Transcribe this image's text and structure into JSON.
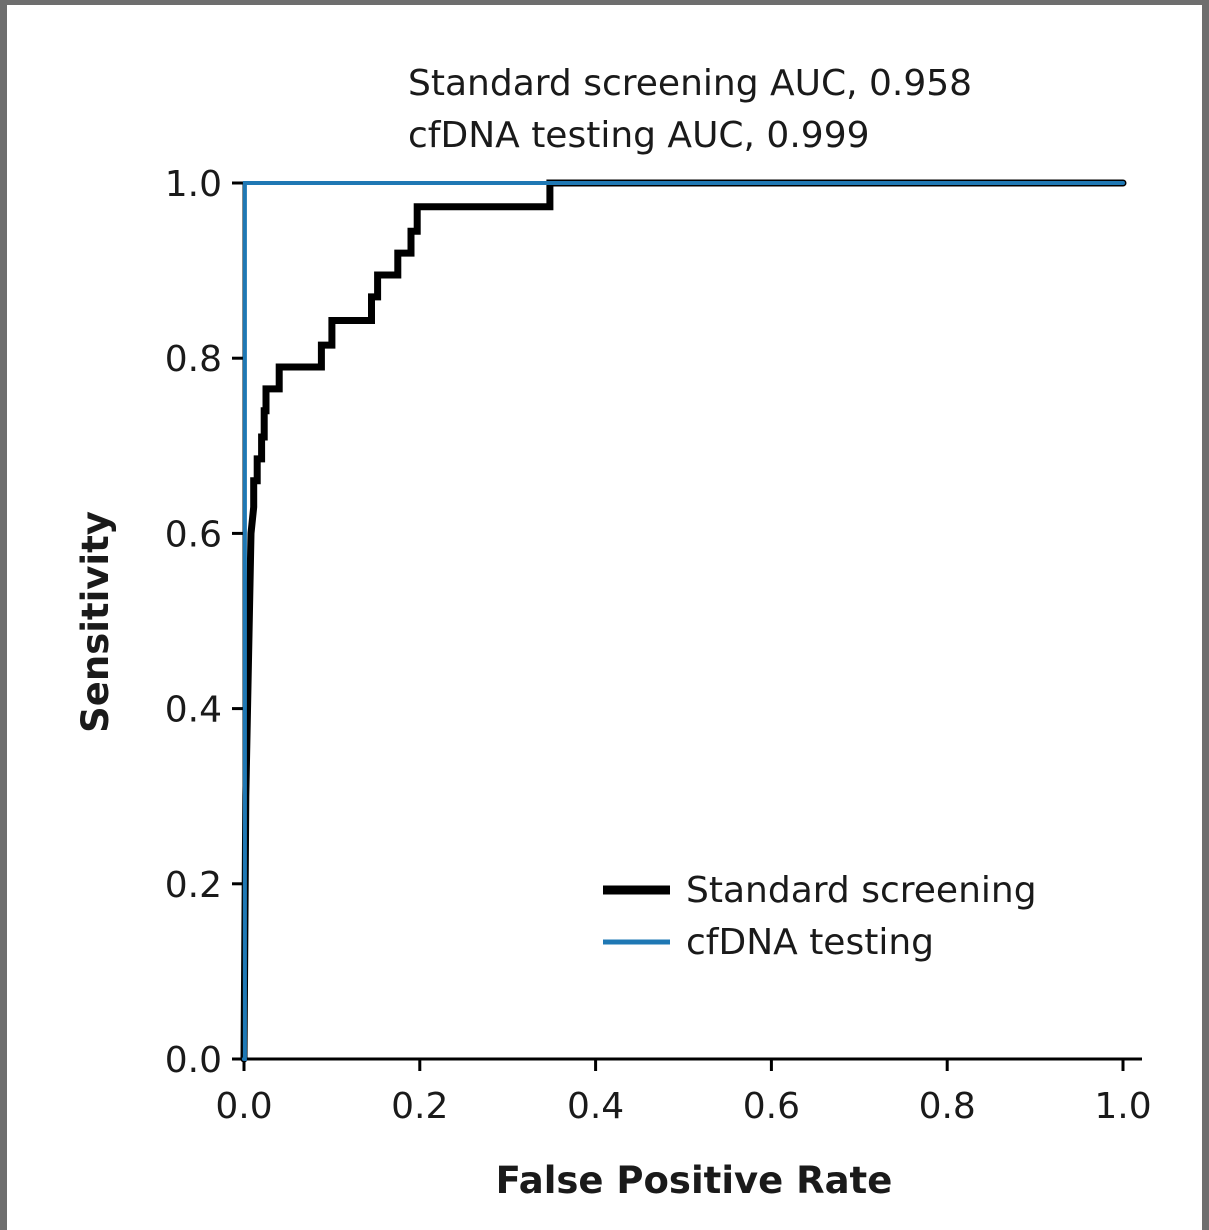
{
  "chart_data": {
    "type": "line",
    "xlabel": "False Positive Rate",
    "ylabel": "Sensitivity",
    "xlim": [
      0.0,
      1.0
    ],
    "ylim": [
      0.0,
      1.0
    ],
    "x_ticks": [
      "0.0",
      "0.2",
      "0.4",
      "0.6",
      "0.8",
      "1.0"
    ],
    "y_ticks": [
      "0.0",
      "0.2",
      "0.4",
      "0.6",
      "0.8",
      "1.0"
    ],
    "grid": false,
    "legend_position": "bottom-right",
    "annotations": [
      "Standard screening AUC, 0.958",
      "cfDNA testing AUC, 0.999"
    ],
    "series": [
      {
        "name": "Standard screening",
        "color": "#000000",
        "x": [
          0.0,
          0.002,
          0.005,
          0.008,
          0.011,
          0.011,
          0.015,
          0.015,
          0.02,
          0.02,
          0.023,
          0.023,
          0.025,
          0.025,
          0.04,
          0.04,
          0.088,
          0.088,
          0.1,
          0.1,
          0.145,
          0.145,
          0.152,
          0.152,
          0.175,
          0.175,
          0.19,
          0.19,
          0.197,
          0.197,
          0.348,
          0.348,
          1.0
        ],
        "y": [
          0.0,
          0.3,
          0.45,
          0.6,
          0.63,
          0.66,
          0.66,
          0.685,
          0.685,
          0.71,
          0.71,
          0.74,
          0.74,
          0.765,
          0.765,
          0.79,
          0.79,
          0.815,
          0.815,
          0.843,
          0.843,
          0.87,
          0.87,
          0.895,
          0.895,
          0.92,
          0.92,
          0.945,
          0.945,
          0.973,
          0.973,
          1.0,
          1.0
        ]
      },
      {
        "name": "cfDNA testing",
        "color": "#1f78b4",
        "x": [
          0.0,
          0.001,
          0.001,
          1.0
        ],
        "y": [
          0.0,
          0.0,
          1.0,
          1.0
        ]
      }
    ]
  }
}
